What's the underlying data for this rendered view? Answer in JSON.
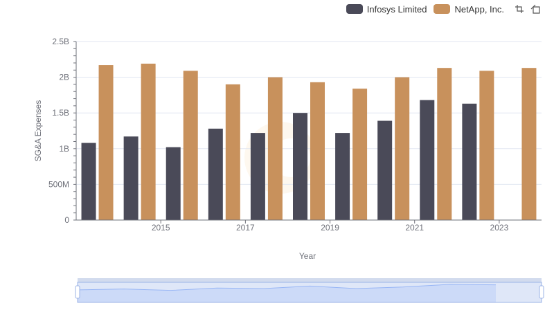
{
  "chart_data": {
    "type": "bar",
    "title": "",
    "xlabel": "Year",
    "ylabel": "SG&A Expenses",
    "ylim": [
      0,
      2500000000
    ],
    "y_ticks": [
      0,
      500000000,
      1000000000,
      1500000000,
      2000000000,
      2500000000
    ],
    "y_tick_labels": [
      "0",
      "500M",
      "1B",
      "1.5B",
      "2B",
      "2.5B"
    ],
    "categories": [
      "2014",
      "2015",
      "2016",
      "2017",
      "2018",
      "2019",
      "2020",
      "2021",
      "2022",
      "2023",
      "2024"
    ],
    "x_tick_labels": [
      "2015",
      "2017",
      "2019",
      "2021",
      "2023"
    ],
    "legend_position": "top-right",
    "series": [
      {
        "name": "Infosys Limited",
        "color": "#4a4a58",
        "values": [
          1080000000,
          1170000000,
          1020000000,
          1280000000,
          1220000000,
          1500000000,
          1220000000,
          1390000000,
          1680000000,
          1630000000,
          null
        ]
      },
      {
        "name": "NetApp, Inc.",
        "color": "#c8915c",
        "values": [
          2170000000,
          2190000000,
          2090000000,
          1900000000,
          2000000000,
          1930000000,
          1840000000,
          2000000000,
          2130000000,
          2090000000,
          2130000000
        ]
      }
    ]
  },
  "colors": {
    "axis": "#6e7079",
    "grid": "#e0e6f1",
    "slider_fill": "#d5e0fb",
    "slider_border": "#d2dbee",
    "slider_line": "#8fb0f7"
  },
  "toolbox": {
    "zoom_icon": "zoom-area-icon",
    "restore_icon": "restore-icon"
  }
}
